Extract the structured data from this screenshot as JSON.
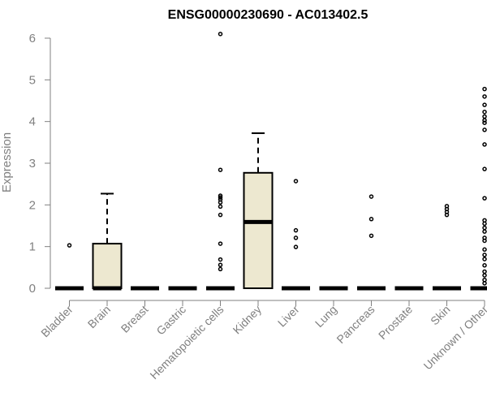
{
  "chart_data": {
    "type": "box",
    "title": "ENSG00000230690 - AC013402.5",
    "xlabel": "",
    "ylabel": "Expression",
    "ylim": [
      0,
      6
    ],
    "yticks": [
      0,
      1,
      2,
      3,
      4,
      5,
      6
    ],
    "grid": false,
    "box_fill": "#ede8d0",
    "categories": [
      "Bladder",
      "Brain",
      "Breast",
      "Gastric",
      "Hematopoietic cells",
      "Kidney",
      "Liver",
      "Lung",
      "Pancreas",
      "Prostate",
      "Skin",
      "Unknown / Other"
    ],
    "boxes": [
      {
        "q1": 0,
        "median": 0,
        "q3": 0,
        "whisker_low": 0,
        "whisker_high": 0,
        "outliers": [
          1.03
        ]
      },
      {
        "q1": 0,
        "median": 0,
        "q3": 1.07,
        "whisker_low": 0,
        "whisker_high": 2.27,
        "outliers": []
      },
      {
        "q1": 0,
        "median": 0,
        "q3": 0,
        "whisker_low": 0,
        "whisker_high": 0,
        "outliers": []
      },
      {
        "q1": 0,
        "median": 0,
        "q3": 0,
        "whisker_low": 0,
        "whisker_high": 0,
        "outliers": []
      },
      {
        "q1": 0,
        "median": 0,
        "q3": 0,
        "whisker_low": 0,
        "whisker_high": 0,
        "outliers": [
          6.1,
          2.84,
          2.22,
          2.18,
          2.13,
          2.06,
          1.96,
          1.76,
          1.07,
          0.69,
          0.56,
          0.46
        ]
      },
      {
        "q1": 0,
        "median": 1.59,
        "q3": 2.77,
        "whisker_low": 0,
        "whisker_high": 3.72,
        "outliers": []
      },
      {
        "q1": 0,
        "median": 0,
        "q3": 0,
        "whisker_low": 0,
        "whisker_high": 0,
        "outliers": [
          2.57,
          1.39,
          1.21,
          0.99
        ]
      },
      {
        "q1": 0,
        "median": 0,
        "q3": 0,
        "whisker_low": 0,
        "whisker_high": 0,
        "outliers": []
      },
      {
        "q1": 0,
        "median": 0,
        "q3": 0,
        "whisker_low": 0,
        "whisker_high": 0,
        "outliers": [
          2.2,
          1.66,
          1.26
        ]
      },
      {
        "q1": 0,
        "median": 0,
        "q3": 0,
        "whisker_low": 0,
        "whisker_high": 0,
        "outliers": []
      },
      {
        "q1": 0,
        "median": 0,
        "q3": 0,
        "whisker_low": 0,
        "whisker_high": 0,
        "outliers": [
          1.97,
          1.9,
          1.83,
          1.76
        ]
      },
      {
        "q1": 0,
        "median": 0,
        "q3": 0,
        "whisker_low": 0,
        "whisker_high": 0,
        "outliers": [
          4.78,
          4.6,
          4.4,
          4.23,
          4.12,
          4.03,
          3.97,
          3.8,
          3.45,
          2.86,
          2.16,
          1.63,
          1.55,
          1.45,
          1.36,
          1.21,
          1.14,
          0.93,
          0.8,
          0.7,
          0.55,
          0.4,
          0.31,
          0.2,
          0.12
        ]
      }
    ]
  }
}
